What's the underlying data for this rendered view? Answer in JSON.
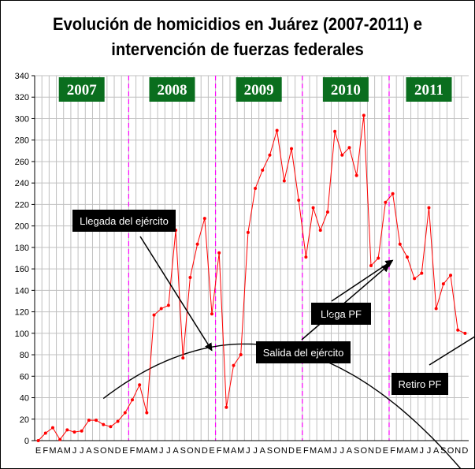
{
  "title_line1": "Evolución de homicidios en Juárez (2007-2011) e",
  "title_line2": "intervención de fuerzas federales",
  "chart_data": {
    "type": "line",
    "ylim": [
      0,
      340
    ],
    "y_ticks": [
      0,
      20,
      40,
      60,
      80,
      100,
      120,
      140,
      160,
      180,
      200,
      220,
      240,
      260,
      280,
      300,
      320,
      340
    ],
    "x_tick_labels": [
      "E",
      "F",
      "M",
      "A",
      "M",
      "J",
      "J",
      "A",
      "S",
      "O",
      "N",
      "D",
      "E",
      "F",
      "M",
      "A",
      "M",
      "J",
      "J",
      "A",
      "S",
      "O",
      "N",
      "D",
      "E",
      "F",
      "M",
      "A",
      "M",
      "J",
      "J",
      "A",
      "S",
      "O",
      "N",
      "D",
      "E",
      "F",
      "M",
      "A",
      "M",
      "J",
      "J",
      "A",
      "S",
      "O",
      "N",
      "D",
      "E",
      "F",
      "M",
      "A",
      "M",
      "J",
      "J",
      "A",
      "S",
      "O",
      "N",
      "D"
    ],
    "grid": true,
    "years": [
      "2007",
      "2008",
      "2009",
      "2010",
      "2011"
    ],
    "year_separators_after_month": [
      13,
      25,
      37,
      49
    ],
    "series": [
      {
        "color": "#ff0000",
        "values": [
          0,
          7,
          12,
          1,
          10,
          8,
          9,
          19,
          19,
          15,
          13,
          18,
          26,
          38,
          52,
          26,
          117,
          123,
          126,
          196,
          77,
          152,
          183,
          207,
          118,
          175,
          31,
          70,
          80,
          194,
          235,
          252,
          266,
          289,
          242,
          272,
          224,
          171,
          217,
          196,
          213,
          288,
          266,
          273,
          247,
          303,
          163,
          170,
          222,
          230,
          183,
          171,
          151,
          156,
          217,
          123,
          146,
          154,
          103,
          100
        ]
      },
      {
        "color": "#000000",
        "trend_coeffs": [
          -25.6,
          7.8,
          -0.1315
        ],
        "trend_from_month": 10
      }
    ],
    "annotations": [
      {
        "text": "Llegada del ejército",
        "arrow_to_month": 25,
        "arrow_to_value": 84
      },
      {
        "text": "Llega PF",
        "arrow_to_month": 50,
        "arrow_to_value": 168
      },
      {
        "text": "Salida del ejército",
        "arrow_to_month": 49.5,
        "arrow_to_value": 164
      },
      {
        "text": "Retiro PF",
        "arrow_to_month": 74,
        "arrow_to_value": 150
      }
    ]
  }
}
